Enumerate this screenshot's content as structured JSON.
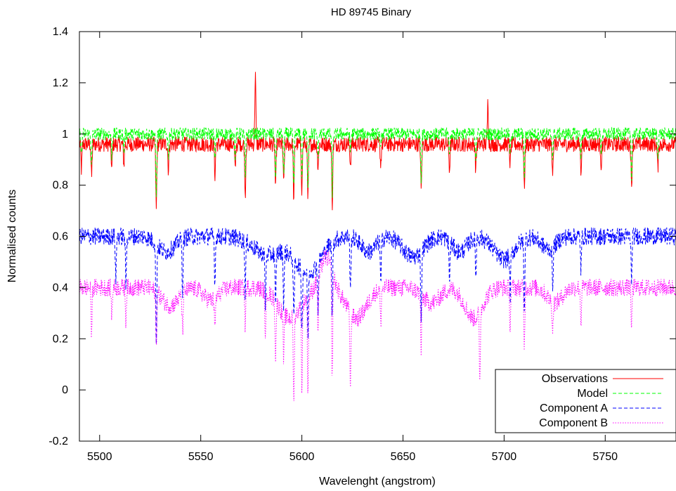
{
  "chart_data": {
    "type": "line",
    "title": "HD 89745 Binary",
    "xlabel": "Wavelenght (angstrom)",
    "ylabel": "Normalised counts",
    "xlim": [
      5490,
      5785
    ],
    "ylim": [
      -0.2,
      1.4
    ],
    "x_ticks": [
      "5500",
      "5550",
      "5600",
      "5650",
      "5700",
      "5750"
    ],
    "y_ticks": [
      "-0.2",
      "0",
      "0.2",
      "0.4",
      "0.6",
      "0.8",
      "1",
      "1.2",
      "1.4"
    ],
    "grid": false,
    "legend_position": "bottom-right",
    "series": [
      {
        "name": "Observations",
        "color": "#ff0000",
        "dash": "solid",
        "continuum": 0.96,
        "noise": 0.03,
        "lines": [
          [
            5491,
            0.1
          ],
          [
            5496,
            0.13
          ],
          [
            5506,
            0.1
          ],
          [
            5512,
            0.08
          ],
          [
            5528,
            0.26
          ],
          [
            5534,
            0.1
          ],
          [
            5557,
            0.12
          ],
          [
            5567,
            0.1
          ],
          [
            5572,
            0.2
          ],
          [
            5577,
            -0.28
          ],
          [
            5587,
            0.18
          ],
          [
            5591,
            0.16
          ],
          [
            5596,
            0.22
          ],
          [
            5600,
            0.18
          ],
          [
            5603,
            0.22
          ],
          [
            5608,
            0.1
          ],
          [
            5615,
            0.24
          ],
          [
            5624,
            0.08
          ],
          [
            5639,
            0.08
          ],
          [
            5659,
            0.18
          ],
          [
            5673,
            0.1
          ],
          [
            5686,
            0.1
          ],
          [
            5692,
            -0.17
          ],
          [
            5703,
            0.08
          ],
          [
            5710,
            0.18
          ],
          [
            5724,
            0.1
          ],
          [
            5738,
            0.1
          ],
          [
            5748,
            0.08
          ],
          [
            5763,
            0.17
          ],
          [
            5776,
            0.1
          ]
        ]
      },
      {
        "name": "Model",
        "color": "#00ff00",
        "dash": "dashed",
        "continuum": 1.0,
        "noise": 0.025,
        "lines": [
          [
            5491,
            0.09
          ],
          [
            5496,
            0.12
          ],
          [
            5506,
            0.09
          ],
          [
            5512,
            0.07
          ],
          [
            5528,
            0.24
          ],
          [
            5534,
            0.09
          ],
          [
            5557,
            0.11
          ],
          [
            5567,
            0.09
          ],
          [
            5572,
            0.18
          ],
          [
            5587,
            0.17
          ],
          [
            5591,
            0.15
          ],
          [
            5596,
            0.21
          ],
          [
            5600,
            0.17
          ],
          [
            5603,
            0.21
          ],
          [
            5608,
            0.09
          ],
          [
            5615,
            0.23
          ],
          [
            5624,
            0.07
          ],
          [
            5639,
            0.07
          ],
          [
            5659,
            0.17
          ],
          [
            5673,
            0.09
          ],
          [
            5686,
            0.09
          ],
          [
            5703,
            0.07
          ],
          [
            5710,
            0.17
          ],
          [
            5724,
            0.09
          ],
          [
            5738,
            0.09
          ],
          [
            5748,
            0.07
          ],
          [
            5763,
            0.16
          ],
          [
            5776,
            0.09
          ]
        ]
      },
      {
        "name": "Component A",
        "color": "#0000ff",
        "dash": "dashed",
        "continuum": 0.6,
        "noise": 0.035,
        "bands": [
          [
            5533,
            0.06,
            6
          ],
          [
            5583,
            0.07,
            10
          ],
          [
            5603,
            0.14,
            9
          ],
          [
            5633,
            0.06,
            5
          ],
          [
            5655,
            0.08,
            7
          ],
          [
            5678,
            0.06,
            5
          ],
          [
            5700,
            0.09,
            7
          ],
          [
            5722,
            0.05,
            5
          ]
        ],
        "lines": [
          [
            5508,
            0.16
          ],
          [
            5513,
            0.2
          ],
          [
            5528,
            0.42
          ],
          [
            5541,
            0.2
          ],
          [
            5557,
            0.18
          ],
          [
            5572,
            0.2
          ],
          [
            5582,
            0.2
          ],
          [
            5587,
            0.22
          ],
          [
            5591,
            0.2
          ],
          [
            5596,
            0.25
          ],
          [
            5600,
            0.24
          ],
          [
            5603,
            0.25
          ],
          [
            5608,
            0.18
          ],
          [
            5615,
            0.3
          ],
          [
            5624,
            0.22
          ],
          [
            5639,
            0.18
          ],
          [
            5659,
            0.25
          ],
          [
            5673,
            0.15
          ],
          [
            5686,
            0.15
          ],
          [
            5703,
            0.16
          ],
          [
            5710,
            0.28
          ],
          [
            5724,
            0.15
          ],
          [
            5738,
            0.13
          ],
          [
            5763,
            0.18
          ]
        ]
      },
      {
        "name": "Component B",
        "color": "#ff00ff",
        "dash": "dotted",
        "continuum": 0.4,
        "noise": 0.035,
        "bands": [
          [
            5535,
            0.07,
            6
          ],
          [
            5555,
            0.05,
            5
          ],
          [
            5594,
            0.12,
            8
          ],
          [
            5627,
            0.12,
            7
          ],
          [
            5664,
            0.06,
            6
          ],
          [
            5685,
            0.12,
            6
          ],
          [
            5725,
            0.06,
            5
          ]
        ],
        "bumps": [
          [
            5612,
            0.12,
            4
          ]
        ],
        "lines": [
          [
            5496,
            0.18
          ],
          [
            5506,
            0.12
          ],
          [
            5513,
            0.13
          ],
          [
            5528,
            0.22
          ],
          [
            5541,
            0.15
          ],
          [
            5557,
            0.13
          ],
          [
            5572,
            0.15
          ],
          [
            5582,
            0.2
          ],
          [
            5587,
            0.23
          ],
          [
            5591,
            0.18
          ],
          [
            5596,
            0.35
          ],
          [
            5600,
            0.32
          ],
          [
            5603,
            0.38
          ],
          [
            5608,
            0.22
          ],
          [
            5615,
            0.42
          ],
          [
            5624,
            0.3
          ],
          [
            5639,
            0.14
          ],
          [
            5659,
            0.22
          ],
          [
            5688,
            0.28
          ],
          [
            5703,
            0.16
          ],
          [
            5710,
            0.24
          ],
          [
            5724,
            0.12
          ],
          [
            5738,
            0.14
          ],
          [
            5763,
            0.16
          ]
        ]
      }
    ]
  }
}
